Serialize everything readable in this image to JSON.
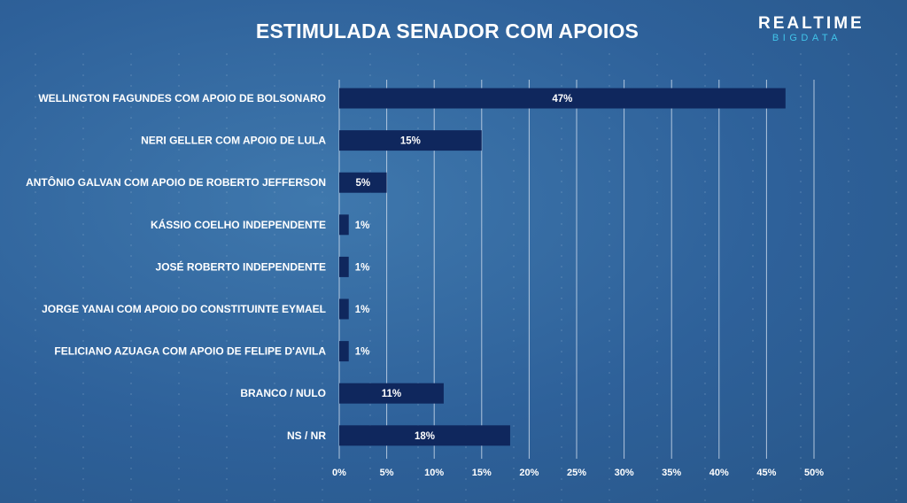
{
  "header": {
    "title": "ESTIMULADA SENADOR COM APOIOS",
    "logo_top": "REALTIME",
    "logo_bottom": "BIGDATA"
  },
  "colors": {
    "bar": "#0f275d",
    "accent": "#41c4ea"
  },
  "chart_data": {
    "type": "bar",
    "orientation": "horizontal",
    "title": "ESTIMULADA SENADOR COM APOIOS",
    "categories": [
      "WELLINGTON FAGUNDES COM APOIO DE BOLSONARO",
      "NERI GELLER COM APOIO DE LULA",
      "ANTÔNIO GALVAN COM APOIO DE ROBERTO JEFFERSON",
      "KÁSSIO COELHO INDEPENDENTE",
      "JOSÉ ROBERTO INDEPENDENTE",
      "JORGE YANAI COM APOIO DO CONSTITUINTE EYMAEL",
      "FELICIANO AZUAGA COM APOIO DE FELIPE D'AVILA",
      "BRANCO / NULO",
      "NS / NR"
    ],
    "values": [
      47,
      15,
      5,
      1,
      1,
      1,
      1,
      11,
      18
    ],
    "value_labels": [
      "47%",
      "15%",
      "5%",
      "1%",
      "1%",
      "1%",
      "1%",
      "11%",
      "18%"
    ],
    "xlim": [
      0,
      50
    ],
    "xticks": [
      0,
      5,
      10,
      15,
      20,
      25,
      30,
      35,
      40,
      45,
      50
    ],
    "xtick_labels": [
      "0%",
      "5%",
      "10%",
      "15%",
      "20%",
      "25%",
      "30%",
      "35%",
      "40%",
      "45%",
      "50%"
    ],
    "xlabel": "",
    "ylabel": "",
    "grid": true
  }
}
